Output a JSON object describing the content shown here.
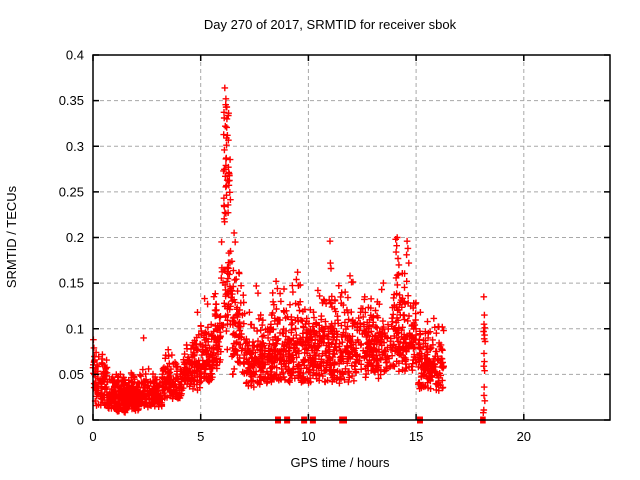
{
  "window": {
    "background": "#ffffff"
  },
  "chart_data": {
    "type": "scatter",
    "title": "Day 270 of 2017, SRMTID for receiver sbok",
    "xlabel": "GPS time / hours",
    "ylabel": "SRMTID / TECUs",
    "xlim": [
      0,
      24
    ],
    "ylim": [
      0,
      0.4
    ],
    "xticks": [
      {
        "v": 0,
        "label": "0"
      },
      {
        "v": 5,
        "label": "5"
      },
      {
        "v": 10,
        "label": "10"
      },
      {
        "v": 15,
        "label": "15"
      },
      {
        "v": 20,
        "label": "20"
      }
    ],
    "yticks": [
      {
        "v": 0,
        "label": "0"
      },
      {
        "v": 0.05,
        "label": "0.05"
      },
      {
        "v": 0.1,
        "label": "0.1"
      },
      {
        "v": 0.15,
        "label": "0.15"
      },
      {
        "v": 0.2,
        "label": "0.2"
      },
      {
        "v": 0.25,
        "label": "0.25"
      },
      {
        "v": 0.3,
        "label": "0.3"
      },
      {
        "v": 0.35,
        "label": "0.35"
      },
      {
        "v": 0.4,
        "label": "0.4"
      }
    ],
    "grid": true,
    "legend": "none",
    "marker": "plus",
    "marker_color": "#ff0000",
    "axis_color": "#000000",
    "grid_color": "#a8a8a8",
    "seed": 7,
    "bands": [
      {
        "t0": 0.0,
        "t1": 0.15,
        "n": 18,
        "ymin": 0.03,
        "ymax": 0.09,
        "bias": 1.2
      },
      {
        "t0": 0.05,
        "t1": 0.7,
        "n": 75,
        "ymin": 0.015,
        "ymax": 0.075,
        "bias": 1.6
      },
      {
        "t0": 0.7,
        "t1": 1.6,
        "n": 150,
        "ymin": 0.008,
        "ymax": 0.052,
        "bias": 1.5
      },
      {
        "t0": 1.4,
        "t1": 2.3,
        "n": 140,
        "ymin": 0.01,
        "ymax": 0.056,
        "bias": 1.5
      },
      {
        "t0": 2.3,
        "t1": 3.2,
        "n": 120,
        "ymin": 0.013,
        "ymax": 0.062,
        "bias": 1.5
      },
      {
        "t0": 3.2,
        "t1": 4.2,
        "n": 120,
        "ymin": 0.022,
        "ymax": 0.078,
        "bias": 1.5
      },
      {
        "t0": 4.2,
        "t1": 5.0,
        "n": 105,
        "ymin": 0.032,
        "ymax": 0.098,
        "bias": 1.5
      },
      {
        "t0": 5.0,
        "t1": 5.6,
        "n": 85,
        "ymin": 0.042,
        "ymax": 0.12,
        "bias": 1.4
      },
      {
        "t0": 5.6,
        "t1": 5.95,
        "n": 55,
        "ymin": 0.05,
        "ymax": 0.15,
        "bias": 1.3
      },
      {
        "t0": 5.95,
        "t1": 6.45,
        "n": 48,
        "ymin": 0.075,
        "ymax": 0.21,
        "bias": 1.0
      },
      {
        "t0": 6.0,
        "t1": 6.4,
        "n": 26,
        "ymin": 0.2,
        "ymax": 0.3,
        "bias": 1.0
      },
      {
        "t0": 6.05,
        "t1": 6.3,
        "n": 11,
        "ymin": 0.3,
        "ymax": 0.362,
        "bias": 1.0
      },
      {
        "t0": 6.45,
        "t1": 7.0,
        "n": 75,
        "ymin": 0.05,
        "ymax": 0.18,
        "bias": 1.5
      },
      {
        "t0": 7.0,
        "t1": 8.2,
        "n": 150,
        "ymin": 0.035,
        "ymax": 0.125,
        "bias": 1.5
      },
      {
        "t0": 8.2,
        "t1": 9.0,
        "n": 115,
        "ymin": 0.04,
        "ymax": 0.15,
        "bias": 1.6
      },
      {
        "t0": 9.0,
        "t1": 10.0,
        "n": 140,
        "ymin": 0.04,
        "ymax": 0.165,
        "bias": 1.7
      },
      {
        "t0": 10.0,
        "t1": 11.0,
        "n": 140,
        "ymin": 0.04,
        "ymax": 0.145,
        "bias": 1.6
      },
      {
        "t0": 11.0,
        "t1": 12.2,
        "n": 150,
        "ymin": 0.04,
        "ymax": 0.16,
        "bias": 1.6
      },
      {
        "t0": 12.2,
        "t1": 13.8,
        "n": 190,
        "ymin": 0.045,
        "ymax": 0.142,
        "bias": 1.5
      },
      {
        "t0": 13.8,
        "t1": 15.0,
        "n": 155,
        "ymin": 0.05,
        "ymax": 0.172,
        "bias": 1.4
      },
      {
        "t0": 15.0,
        "t1": 16.28,
        "n": 160,
        "ymin": 0.032,
        "ymax": 0.115,
        "bias": 1.5
      }
    ],
    "feature_points": [
      [
        0.02,
        0.088
      ],
      [
        0.04,
        0.079
      ],
      [
        2.35,
        0.09
      ],
      [
        4.85,
        0.118
      ],
      [
        5.18,
        0.133
      ],
      [
        5.32,
        0.127
      ],
      [
        6.12,
        0.364
      ],
      [
        6.17,
        0.352
      ],
      [
        6.21,
        0.343
      ],
      [
        6.09,
        0.331
      ],
      [
        6.14,
        0.322
      ],
      [
        6.24,
        0.312
      ],
      [
        6.1,
        0.296
      ],
      [
        6.19,
        0.287
      ],
      [
        6.06,
        0.273
      ],
      [
        6.28,
        0.262
      ],
      [
        6.55,
        0.205
      ],
      [
        6.6,
        0.195
      ],
      [
        7.58,
        0.147
      ],
      [
        7.66,
        0.139
      ],
      [
        8.5,
        0.152
      ],
      [
        8.56,
        0.144
      ],
      [
        9.5,
        0.162
      ],
      [
        9.44,
        0.154
      ],
      [
        9.62,
        0.148
      ],
      [
        10.44,
        0.142
      ],
      [
        10.52,
        0.136
      ],
      [
        11.0,
        0.196
      ],
      [
        11.02,
        0.172
      ],
      [
        11.05,
        0.166
      ],
      [
        11.93,
        0.158
      ],
      [
        12.0,
        0.151
      ],
      [
        13.48,
        0.15
      ],
      [
        13.4,
        0.143
      ],
      [
        14.05,
        0.198
      ],
      [
        14.12,
        0.2
      ],
      [
        14.1,
        0.191
      ],
      [
        14.07,
        0.184
      ],
      [
        14.16,
        0.177
      ],
      [
        14.2,
        0.17
      ],
      [
        14.58,
        0.196
      ],
      [
        14.62,
        0.188
      ],
      [
        14.56,
        0.181
      ],
      [
        14.66,
        0.172
      ],
      [
        15.2,
        0.118
      ],
      [
        18.14,
        0.135
      ],
      [
        18.17,
        0.115
      ],
      [
        18.15,
        0.105
      ],
      [
        18.19,
        0.101
      ],
      [
        18.13,
        0.097
      ],
      [
        18.18,
        0.093
      ],
      [
        18.16,
        0.089
      ],
      [
        18.2,
        0.086
      ],
      [
        18.15,
        0.073
      ],
      [
        18.17,
        0.064
      ],
      [
        18.14,
        0.059
      ],
      [
        18.18,
        0.054
      ],
      [
        18.16,
        0.036
      ],
      [
        18.15,
        0.027
      ],
      [
        18.19,
        0.021
      ],
      [
        18.14,
        0.011
      ],
      [
        18.12,
        0.008
      ]
    ],
    "zero_clusters": [
      {
        "t": 8.59,
        "w": 0.28
      },
      {
        "t": 9.01,
        "w": 0.28
      },
      {
        "t": 9.8,
        "w": 0.28
      },
      {
        "t": 10.21,
        "w": 0.28
      },
      {
        "t": 11.61,
        "w": 0.36
      },
      {
        "t": 15.18,
        "w": 0.28
      },
      {
        "t": 18.1,
        "w": 0.26
      }
    ]
  }
}
